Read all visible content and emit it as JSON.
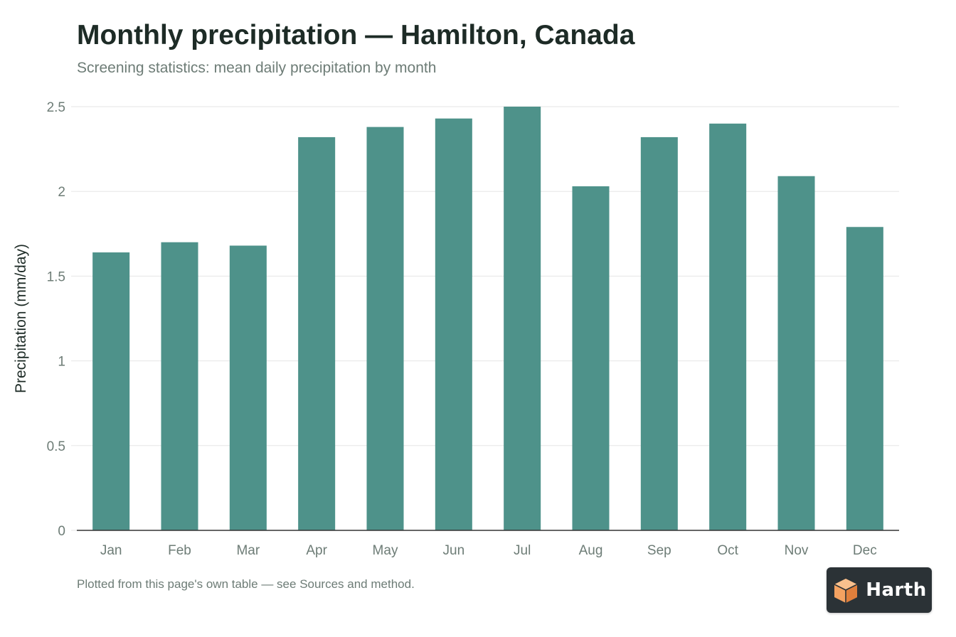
{
  "header": {
    "title": "Monthly precipitation — Hamilton, Canada",
    "subtitle": "Screening statistics: mean daily precipitation by month"
  },
  "footer": {
    "note": "Plotted from this page's own table — see Sources and method."
  },
  "brand": {
    "name": "Harth",
    "icon": "orange-cube-logo-icon",
    "badge_color": "#2b3236",
    "icon_color": "#f4a261"
  },
  "colors": {
    "bar": "#4e928a",
    "axis": "#333333",
    "grid": "#e6e6e6",
    "tick_text": "#6d7c76"
  },
  "chart_data": {
    "type": "bar",
    "title": "Monthly precipitation — Hamilton, Canada",
    "subtitle": "Screening statistics: mean daily precipitation by month",
    "xlabel": "",
    "ylabel": "Precipitation (mm/day)",
    "categories": [
      "Jan",
      "Feb",
      "Mar",
      "Apr",
      "May",
      "Jun",
      "Jul",
      "Aug",
      "Sep",
      "Oct",
      "Nov",
      "Dec"
    ],
    "values": [
      1.64,
      1.7,
      1.68,
      2.32,
      2.38,
      2.43,
      2.5,
      2.03,
      2.32,
      2.4,
      2.09,
      1.79
    ],
    "ylim": [
      0,
      2.5
    ],
    "yticks": [
      0,
      0.5,
      1,
      1.5,
      2,
      2.5
    ],
    "ytick_labels": [
      "0",
      "0.5",
      "1",
      "1.5",
      "2",
      "2.5"
    ],
    "grid": true,
    "legend": "none"
  }
}
